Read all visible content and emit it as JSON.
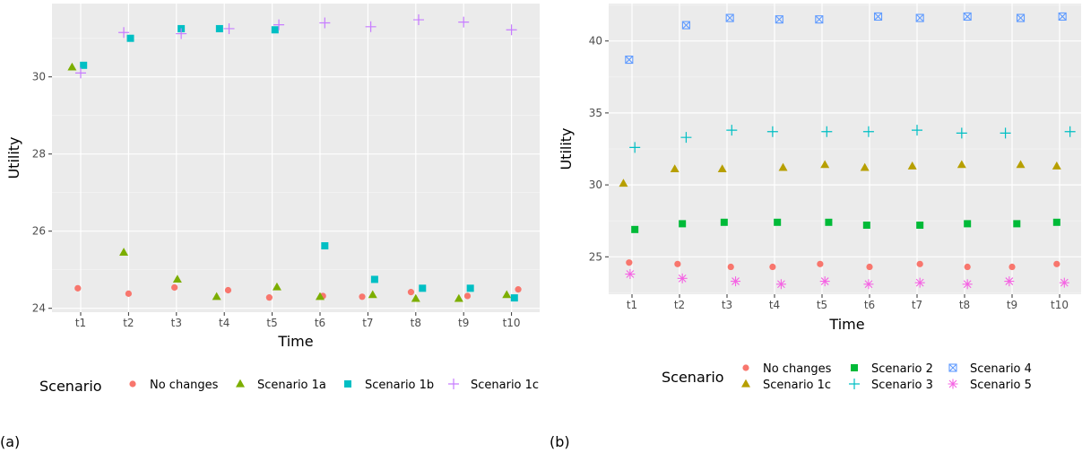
{
  "chart_data": [
    {
      "panel_label": "(a)",
      "type": "scatter",
      "xlabel": "Time",
      "ylabel": "Utility",
      "categories": [
        "t1",
        "t2",
        "t3",
        "t4",
        "t5",
        "t6",
        "t7",
        "t8",
        "t9",
        "t10"
      ],
      "ylim": [
        23.9,
        31.9
      ],
      "yticks": [
        24,
        26,
        28,
        30
      ],
      "grid": true,
      "legend_title": "Scenario",
      "legend_placement": "bottom",
      "series": [
        {
          "name": "No changes",
          "color": "#F8766D",
          "shape": "circle",
          "x_offset": [
            -0.06,
            0.0,
            -0.04,
            0.08,
            -0.06,
            0.06,
            -0.12,
            -0.1,
            0.08,
            0.14
          ],
          "values": [
            24.52,
            24.38,
            24.54,
            24.47,
            24.28,
            24.32,
            24.3,
            24.42,
            24.32,
            24.49
          ]
        },
        {
          "name": "Scenario 1a",
          "color": "#7CAE00",
          "shape": "triangle",
          "x_offset": [
            -0.18,
            -0.1,
            0.02,
            -0.16,
            0.1,
            0.0,
            0.1,
            0.0,
            -0.1,
            -0.1
          ],
          "values": [
            30.25,
            25.45,
            24.75,
            24.3,
            24.55,
            24.3,
            24.35,
            24.25,
            24.25,
            24.35
          ]
        },
        {
          "name": "Scenario 1b",
          "color": "#00BFC4",
          "shape": "square",
          "x_offset": [
            0.06,
            0.04,
            0.1,
            -0.1,
            0.06,
            0.1,
            0.14,
            0.14,
            0.14,
            0.06
          ],
          "values": [
            30.3,
            31.0,
            31.25,
            31.25,
            31.22,
            25.62,
            24.75,
            24.52,
            24.52,
            24.27
          ]
        },
        {
          "name": "Scenario 1c",
          "color": "#C77CFF",
          "shape": "plus",
          "x_offset": [
            0.0,
            -0.1,
            0.1,
            0.1,
            0.14,
            0.1,
            0.06,
            0.06,
            0.0,
            0.0
          ],
          "values": [
            30.1,
            31.15,
            31.12,
            31.25,
            31.35,
            31.4,
            31.3,
            31.48,
            31.42,
            31.22
          ]
        }
      ]
    },
    {
      "panel_label": "(b)",
      "type": "scatter",
      "xlabel": "Time",
      "ylabel": "Utility",
      "categories": [
        "t1",
        "t2",
        "t3",
        "t4",
        "t5",
        "t6",
        "t7",
        "t8",
        "t9",
        "t10"
      ],
      "ylim": [
        22.4,
        42.6
      ],
      "yticks": [
        25,
        30,
        35,
        40
      ],
      "grid": true,
      "legend_title": "Scenario",
      "legend_placement": "bottom",
      "series": [
        {
          "name": "No changes",
          "color": "#F8766D",
          "shape": "circle",
          "x_offset": [
            -0.06,
            -0.04,
            0.08,
            -0.04,
            -0.04,
            0.0,
            0.06,
            0.06,
            0.0,
            -0.06
          ],
          "values": [
            24.6,
            24.5,
            24.3,
            24.3,
            24.5,
            24.3,
            24.5,
            24.3,
            24.3,
            24.5
          ]
        },
        {
          "name": "Scenario 1c",
          "color": "#B79F00",
          "shape": "triangle",
          "x_offset": [
            -0.18,
            -0.1,
            -0.1,
            0.18,
            0.06,
            -0.1,
            -0.1,
            -0.06,
            0.18,
            -0.06
          ],
          "values": [
            30.1,
            31.1,
            31.1,
            31.2,
            31.4,
            31.2,
            31.3,
            31.4,
            31.4,
            31.3
          ]
        },
        {
          "name": "Scenario 2",
          "color": "#00BA38",
          "shape": "square",
          "x_offset": [
            0.06,
            0.06,
            -0.06,
            0.06,
            0.14,
            -0.06,
            0.06,
            0.06,
            0.1,
            -0.06
          ],
          "values": [
            26.9,
            27.3,
            27.4,
            27.4,
            27.4,
            27.2,
            27.2,
            27.3,
            27.3,
            27.4
          ]
        },
        {
          "name": "Scenario 3",
          "color": "#00BFC4",
          "shape": "plus",
          "x_offset": [
            0.06,
            0.14,
            0.1,
            -0.04,
            0.1,
            -0.02,
            0.0,
            -0.06,
            -0.14,
            0.22
          ],
          "values": [
            32.6,
            33.3,
            33.8,
            33.7,
            33.7,
            33.7,
            33.8,
            33.6,
            33.6,
            33.7
          ]
        },
        {
          "name": "Scenario 4",
          "color": "#619CFF",
          "shape": "square-x",
          "x_offset": [
            -0.06,
            0.14,
            0.06,
            0.1,
            -0.06,
            0.18,
            0.06,
            0.06,
            0.18,
            0.06
          ],
          "values": [
            38.7,
            41.1,
            41.6,
            41.5,
            41.5,
            41.7,
            41.6,
            41.7,
            41.6,
            41.7
          ]
        },
        {
          "name": "Scenario 5",
          "color": "#F564E3",
          "shape": "asterisk",
          "x_offset": [
            -0.04,
            0.06,
            0.18,
            0.14,
            0.06,
            -0.02,
            0.06,
            0.06,
            -0.06,
            0.1
          ],
          "values": [
            23.8,
            23.5,
            23.3,
            23.1,
            23.3,
            23.1,
            23.2,
            23.1,
            23.3,
            23.2
          ]
        }
      ]
    }
  ]
}
